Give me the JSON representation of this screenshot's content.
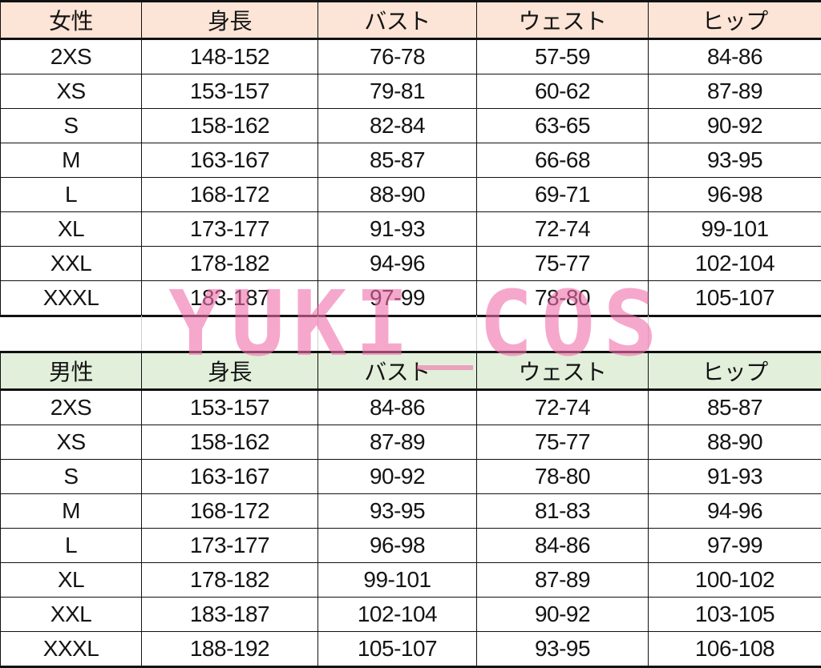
{
  "colors": {
    "female_header": "#fce4d6",
    "male_header": "#e2efda",
    "watermark": "#f06eaa"
  },
  "watermark": "YUKI COS",
  "female": {
    "headers": [
      "女性",
      "身長",
      "バスト",
      "ウェスト",
      "ヒップ"
    ],
    "rows": [
      [
        "2XS",
        "148-152",
        "76-78",
        "57-59",
        "84-86"
      ],
      [
        "XS",
        "153-157",
        "79-81",
        "60-62",
        "87-89"
      ],
      [
        "S",
        "158-162",
        "82-84",
        "63-65",
        "90-92"
      ],
      [
        "M",
        "163-167",
        "85-87",
        "66-68",
        "93-95"
      ],
      [
        "L",
        "168-172",
        "88-90",
        "69-71",
        "96-98"
      ],
      [
        "XL",
        "173-177",
        "91-93",
        "72-74",
        "99-101"
      ],
      [
        "XXL",
        "178-182",
        "94-96",
        "75-77",
        "102-104"
      ],
      [
        "XXXL",
        "183-187",
        "97-99",
        "78-80",
        "105-107"
      ]
    ]
  },
  "male": {
    "headers": [
      "男性",
      "身長",
      "バスト",
      "ウェスト",
      "ヒップ"
    ],
    "rows": [
      [
        "2XS",
        "153-157",
        "84-86",
        "72-74",
        "85-87"
      ],
      [
        "XS",
        "158-162",
        "87-89",
        "75-77",
        "88-90"
      ],
      [
        "S",
        "163-167",
        "90-92",
        "78-80",
        "91-93"
      ],
      [
        "M",
        "168-172",
        "93-95",
        "81-83",
        "94-96"
      ],
      [
        "L",
        "173-177",
        "96-98",
        "84-86",
        "97-99"
      ],
      [
        "XL",
        "178-182",
        "99-101",
        "87-89",
        "100-102"
      ],
      [
        "XXL",
        "183-187",
        "102-104",
        "90-92",
        "103-105"
      ],
      [
        "XXXL",
        "188-192",
        "105-107",
        "93-95",
        "106-108"
      ]
    ]
  }
}
